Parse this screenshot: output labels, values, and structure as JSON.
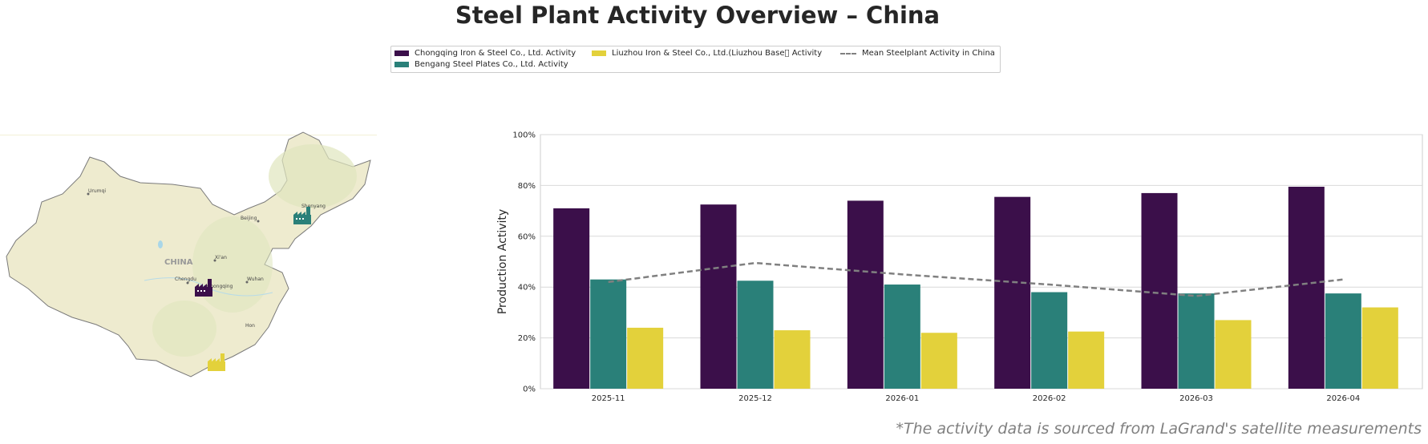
{
  "title": "Steel Plant Activity Overview – China",
  "footnote": "*The activity data is sourced from LaGrand's satellite measurements",
  "map": {
    "country_label": "CHINA",
    "cities": [
      "Urumqi",
      "Beijing",
      "Shenyang",
      "Xi'an",
      "Chengdu",
      "Chongqing",
      "Wuhan",
      "Hon"
    ],
    "markers": [
      {
        "name": "Chongqing Iron & Steel Co., Ltd.",
        "color": "#3b0f4a",
        "icon": "factory-icon"
      },
      {
        "name": "Bengang Steel Plates Co., Ltd.",
        "color": "#2a8079",
        "icon": "factory-icon"
      },
      {
        "name": "Liuzhou Iron & Steel Co., Ltd.(Liuzhou Base)",
        "color": "#e3d13b",
        "icon": "factory-icon"
      }
    ]
  },
  "chart_data": {
    "type": "bar",
    "title": "",
    "xlabel": "",
    "ylabel": "Production Activity",
    "categories": [
      "2025-11",
      "2025-12",
      "2026-01",
      "2026-02",
      "2026-03",
      "2026-04"
    ],
    "ylim": [
      0,
      100
    ],
    "yticks": [
      "0%",
      "20%",
      "40%",
      "60%",
      "80%",
      "100%"
    ],
    "grid": "horizontal",
    "legend_position": "top-center",
    "series": [
      {
        "name": "Chongqing Iron & Steel Co., Ltd. Activity",
        "type": "bar",
        "color": "#3b0f4a",
        "values": [
          71,
          72.5,
          74,
          75.5,
          77,
          79.5
        ]
      },
      {
        "name": "Bengang Steel Plates Co., Ltd. Activity",
        "type": "bar",
        "color": "#2a8079",
        "values": [
          43,
          42.5,
          41,
          38,
          37.5,
          37.5
        ]
      },
      {
        "name": "Liuzhou Iron & Steel Co., Ltd.(Liuzhou Base\u0000 Activity",
        "type": "bar",
        "color": "#e3d13b",
        "values": [
          24,
          23,
          22,
          22.5,
          27,
          32
        ]
      },
      {
        "name": "Mean Steelplant Activity in China",
        "type": "line",
        "style": "dashed",
        "color": "#808080",
        "values": [
          42,
          49.5,
          45,
          41,
          36.5,
          43
        ]
      }
    ]
  }
}
